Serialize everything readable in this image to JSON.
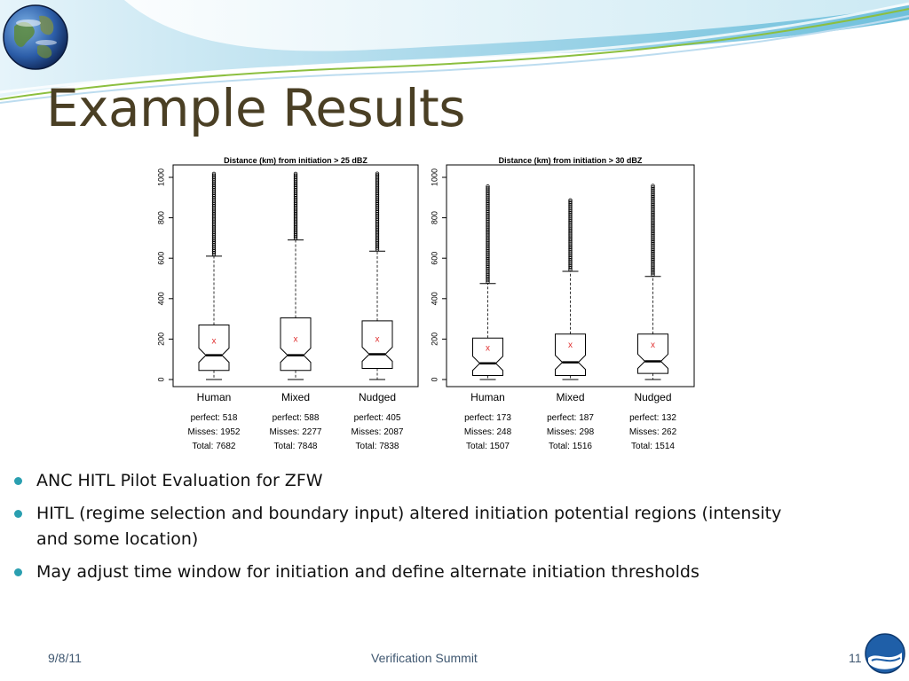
{
  "slide": {
    "title": "Example Results",
    "bullets": [
      "ANC HITL Pilot Evaluation for ZFW",
      "HITL (regime selection and boundary input) altered initiation potential regions (intensity and some location)",
      "May adjust time window for initiation and define alternate initiation thresholds"
    ],
    "footer": {
      "date": "9/8/11",
      "title": "Verification Summit",
      "page": "11"
    },
    "colors": {
      "title": "#4a3f24",
      "bullet": "#2a9fb0",
      "footer": "#3f5770",
      "wave": "#a8d8ea",
      "mean_marker": "#e03030"
    },
    "icons": [
      "earth-globe-icon",
      "noaa-logo-icon"
    ]
  },
  "chart_data": [
    {
      "type": "boxplot",
      "title": "Distance (km) from initiation > 25 dBZ",
      "categories": [
        "Human",
        "Mixed",
        "Nudged"
      ],
      "ylim": [
        0,
        1000
      ],
      "yticks": [
        0,
        200,
        400,
        600,
        800,
        1000
      ],
      "boxes": [
        {
          "whisker_low": 0,
          "q1": 45,
          "median": 120,
          "q3": 270,
          "whisker_high": 610,
          "mean": 190,
          "outlier_max": 1020
        },
        {
          "whisker_low": 0,
          "q1": 45,
          "median": 120,
          "q3": 305,
          "whisker_high": 690,
          "mean": 200,
          "outlier_max": 1020
        },
        {
          "whisker_low": 0,
          "q1": 55,
          "median": 125,
          "q3": 290,
          "whisker_high": 635,
          "mean": 200,
          "outlier_max": 1020
        }
      ],
      "stats": [
        {
          "perfect": "perfect: 518",
          "misses": "Misses: 1952",
          "total": "Total: 7682"
        },
        {
          "perfect": "perfect: 588",
          "misses": "Misses: 2277",
          "total": "Total: 7848"
        },
        {
          "perfect": "perfect: 405",
          "misses": "Misses: 2087",
          "total": "Total: 7838"
        }
      ]
    },
    {
      "type": "boxplot",
      "title": "Distance (km) from initiation > 30 dBZ",
      "categories": [
        "Human",
        "Mixed",
        "Nudged"
      ],
      "ylim": [
        0,
        1000
      ],
      "yticks": [
        0,
        200,
        400,
        600,
        800,
        1000
      ],
      "boxes": [
        {
          "whisker_low": 0,
          "q1": 20,
          "median": 80,
          "q3": 205,
          "whisker_high": 475,
          "mean": 155,
          "outlier_max": 960
        },
        {
          "whisker_low": 0,
          "q1": 20,
          "median": 85,
          "q3": 225,
          "whisker_high": 535,
          "mean": 170,
          "outlier_max": 890
        },
        {
          "whisker_low": 0,
          "q1": 30,
          "median": 90,
          "q3": 225,
          "whisker_high": 510,
          "mean": 170,
          "outlier_max": 960
        }
      ],
      "stats": [
        {
          "perfect": "perfect: 173",
          "misses": "Misses: 248",
          "total": "Total: 1507"
        },
        {
          "perfect": "perfect: 187",
          "misses": "Misses: 298",
          "total": "Total: 1516"
        },
        {
          "perfect": "perfect: 132",
          "misses": "Misses: 262",
          "total": "Total: 1514"
        }
      ]
    }
  ]
}
